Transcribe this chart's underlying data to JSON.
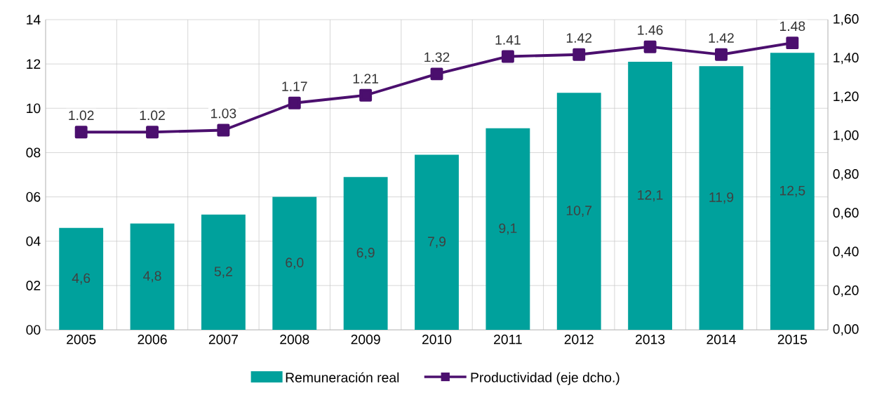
{
  "chart_data": {
    "type": "bar",
    "categories": [
      "2005",
      "2006",
      "2007",
      "2008",
      "2009",
      "2010",
      "2011",
      "2012",
      "2013",
      "2014",
      "2015"
    ],
    "series": [
      {
        "name": "Remuneración real",
        "color": "#00a19c",
        "values": [
          4.6,
          4.8,
          5.2,
          6.0,
          6.9,
          7.9,
          9.1,
          10.7,
          12.1,
          11.9,
          12.5
        ],
        "value_labels": [
          "4,6",
          "4,8",
          "5,2",
          "6,0",
          "6,9",
          "7,9",
          "9,1",
          "10,7",
          "12,1",
          "11,9",
          "12,5"
        ]
      },
      {
        "name": "Productividad (eje dcho.)",
        "type": "line",
        "axis": "y2",
        "color": "#4b0f6e",
        "marker": "square",
        "values": [
          1.02,
          1.02,
          1.03,
          1.17,
          1.21,
          1.32,
          1.41,
          1.42,
          1.46,
          1.42,
          1.48
        ],
        "value_labels": [
          "1.02",
          "1.02",
          "1.03",
          "1.17",
          "1.21",
          "1.32",
          "1.41",
          "1.42",
          "1.46",
          "1.42",
          "1.48"
        ]
      }
    ],
    "ylim": [
      0,
      14
    ],
    "yticks": [
      {
        "value": 0,
        "label": "00"
      },
      {
        "value": 2,
        "label": "02"
      },
      {
        "value": 4,
        "label": "04"
      },
      {
        "value": 6,
        "label": "06"
      },
      {
        "value": 8,
        "label": "08"
      },
      {
        "value": 10,
        "label": "10"
      },
      {
        "value": 12,
        "label": "12"
      },
      {
        "value": 14,
        "label": "14"
      }
    ],
    "y2lim": [
      0,
      1.6
    ],
    "y2ticks": [
      {
        "value": 0,
        "label": "0,00"
      },
      {
        "value": 0.2,
        "label": "0,20"
      },
      {
        "value": 0.4,
        "label": "0,40"
      },
      {
        "value": 0.6,
        "label": "0,60"
      },
      {
        "value": 0.8,
        "label": "0,80"
      },
      {
        "value": 1.0,
        "label": "1,00"
      },
      {
        "value": 1.2,
        "label": "1,20"
      },
      {
        "value": 1.4,
        "label": "1,40"
      },
      {
        "value": 1.6,
        "label": "1,60"
      }
    ],
    "grid": true,
    "legend": "bottom"
  }
}
